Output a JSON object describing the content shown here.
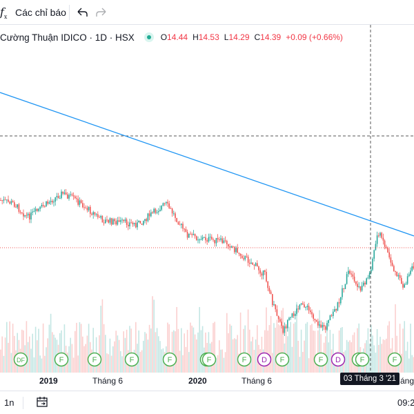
{
  "toolbar": {
    "fx_symbol": "f",
    "fx_sub": "x",
    "indicators_label": "Các chỉ báo",
    "undo_icon": "undo-arrow-icon",
    "redo_icon": "redo-arrow-icon"
  },
  "legend": {
    "title": "Cường Thuận IDICO · 1D · HSX",
    "o_key": "O",
    "o_val": "14.44",
    "h_key": "H",
    "h_val": "14.53",
    "l_key": "L",
    "l_val": "14.29",
    "c_key": "C",
    "c_val": "14.39",
    "change": "+0.09 (+0.66%)",
    "status_color": "#22ab94"
  },
  "xaxis": {
    "labels": [
      {
        "text": "2019",
        "bold": true
      },
      {
        "text": "Tháng 6",
        "bold": false
      },
      {
        "text": "2020",
        "bold": true
      },
      {
        "text": "Tháng 6",
        "bold": false
      },
      {
        "text": "áng",
        "bold": false
      }
    ],
    "crosshair_date": "03 Tháng 3 '21"
  },
  "events": [
    "DF",
    "F",
    "F",
    "F",
    "F",
    "F",
    "F",
    "F",
    "D",
    "F",
    "F",
    "D",
    "F",
    "F",
    "F"
  ],
  "colors": {
    "up": "#26a69a",
    "down": "#ef5350",
    "trendline": "#2196f3",
    "event_F": "#4caf50",
    "event_D": "#9c27b0"
  },
  "bottom": {
    "range_label": "1n",
    "calendar_icon": "calendar-range-icon",
    "time": "09:2"
  }
}
